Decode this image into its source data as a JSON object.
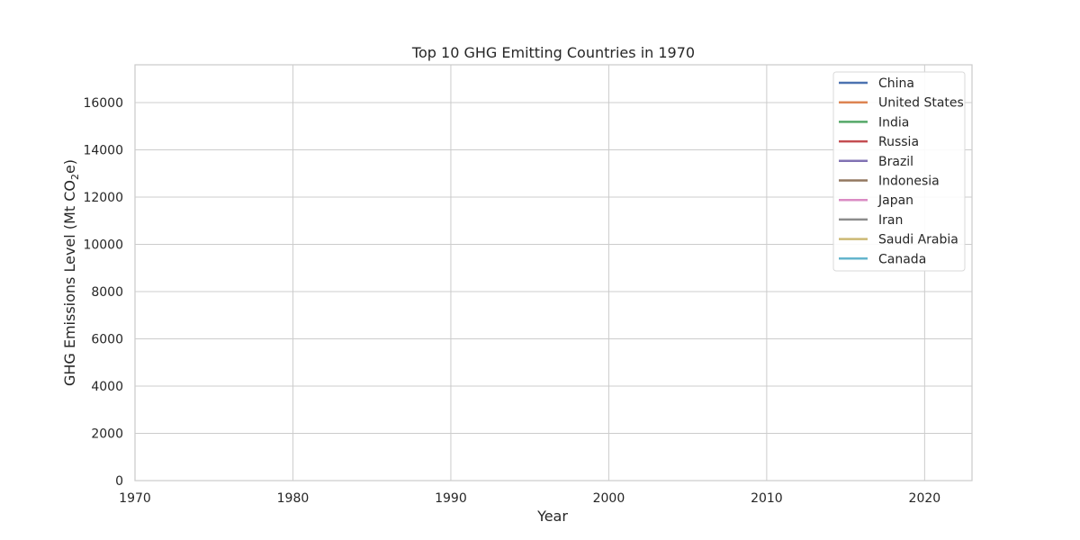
{
  "chart_data": {
    "type": "line",
    "title": "Top 10 GHG Emitting Countries in 1970",
    "xlabel": "Year",
    "ylabel_main": "GHG Emissions Level (Mt CO",
    "ylabel_sub": "2",
    "ylabel_tail": "e)",
    "xlim": [
      1970,
      2023
    ],
    "ylim": [
      0,
      17600
    ],
    "x_ticks": [
      1970,
      1980,
      1990,
      2000,
      2010,
      2020
    ],
    "y_ticks": [
      0,
      2000,
      4000,
      6000,
      8000,
      10000,
      12000,
      14000,
      16000
    ],
    "grid": true,
    "legend_position": "top-right",
    "series": [
      {
        "name": "China",
        "color": "#4c72b0",
        "x": [
          1970
        ],
        "y": [
          0
        ]
      },
      {
        "name": "United States",
        "color": "#dd8452",
        "x": [
          1970
        ],
        "y": [
          0
        ]
      },
      {
        "name": "India",
        "color": "#55a868",
        "x": [
          1970
        ],
        "y": [
          0
        ]
      },
      {
        "name": "Russia",
        "color": "#c44e52",
        "x": [
          1970
        ],
        "y": [
          0
        ]
      },
      {
        "name": "Brazil",
        "color": "#8172b3",
        "x": [
          1970
        ],
        "y": [
          0
        ]
      },
      {
        "name": "Indonesia",
        "color": "#937860",
        "x": [
          1970
        ],
        "y": [
          0
        ]
      },
      {
        "name": "Japan",
        "color": "#da8bc3",
        "x": [
          1970
        ],
        "y": [
          0
        ]
      },
      {
        "name": "Iran",
        "color": "#8c8c8c",
        "x": [
          1970
        ],
        "y": [
          0
        ]
      },
      {
        "name": "Saudi Arabia",
        "color": "#ccb974",
        "x": [
          1970
        ],
        "y": [
          0
        ]
      },
      {
        "name": "Canada",
        "color": "#64b5cd",
        "x": [
          1970
        ],
        "y": [
          0
        ]
      }
    ]
  }
}
